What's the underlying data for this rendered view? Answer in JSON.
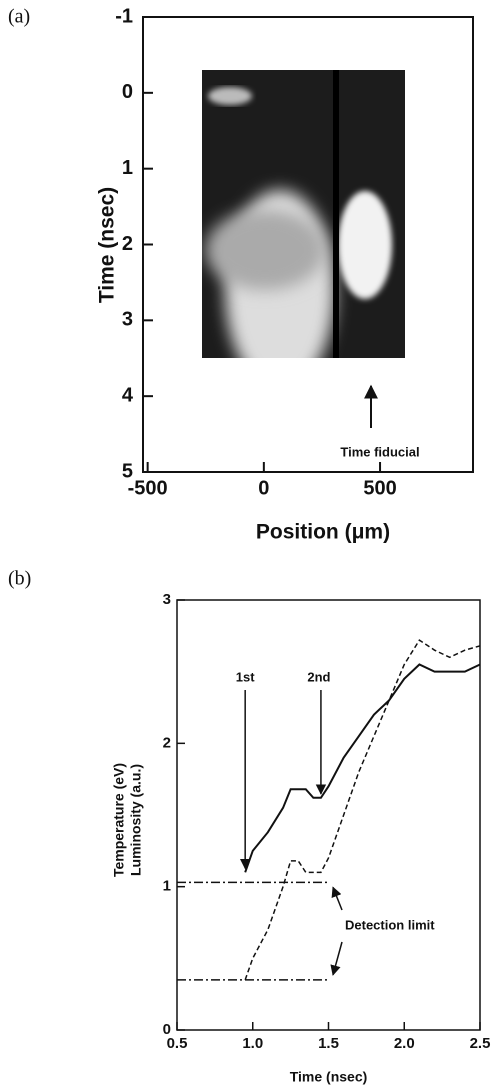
{
  "chart_data": [
    {
      "type": "image",
      "label": "(a)",
      "xlabel": "Position (μm)",
      "ylabel": "Time (nsec)",
      "xlim": [
        -520,
        900
      ],
      "xticks": [
        -500,
        0,
        500
      ],
      "ylim": [
        5,
        -1
      ],
      "yticks": [
        -1,
        0,
        1,
        2,
        3,
        4,
        5
      ],
      "annotations": [
        "Time fiducial"
      ]
    },
    {
      "type": "line",
      "label": "(b)",
      "xlabel": "Time (nsec)",
      "ylabel": [
        "Temperature (eV)",
        "Luminosity (a.u.)"
      ],
      "xlim": [
        0.5,
        2.5
      ],
      "xticks": [
        0.5,
        {
          "value": 1,
          "label": "1.0"
        },
        1.5,
        {
          "value": 2,
          "label": "2.0"
        },
        2.5
      ],
      "ylim": [
        0,
        3
      ],
      "yticks": [
        0,
        1,
        2,
        3
      ],
      "series": [
        {
          "style": "solid",
          "color": "#111111",
          "x": [
            0.95,
            1.0,
            1.1,
            1.2,
            1.25,
            1.35,
            1.4,
            1.45,
            1.5,
            1.6,
            1.7,
            1.8,
            1.9,
            2.0,
            2.1,
            2.2,
            2.3,
            2.4,
            2.5
          ],
          "values": [
            1.1,
            1.25,
            1.38,
            1.55,
            1.68,
            1.68,
            1.62,
            1.62,
            1.7,
            1.9,
            2.05,
            2.2,
            2.3,
            2.45,
            2.55,
            2.5,
            2.5,
            2.5,
            2.55
          ]
        },
        {
          "style": "dashed",
          "color": "#111111",
          "x": [
            0.95,
            1.0,
            1.1,
            1.2,
            1.25,
            1.3,
            1.35,
            1.45,
            1.5,
            1.6,
            1.7,
            1.8,
            1.9,
            2.0,
            2.1,
            2.2,
            2.3,
            2.4,
            2.5
          ],
          "values": [
            0.35,
            0.5,
            0.7,
            1.0,
            1.18,
            1.18,
            1.1,
            1.1,
            1.2,
            1.5,
            1.8,
            2.05,
            2.3,
            2.55,
            2.72,
            2.65,
            2.6,
            2.65,
            2.68
          ]
        },
        {
          "style": "dashdot",
          "color": "#111111",
          "x": [
            0.5,
            1.5
          ],
          "values": [
            1.03,
            1.03
          ]
        },
        {
          "style": "dashdot",
          "color": "#111111",
          "x": [
            0.5,
            1.5
          ],
          "values": [
            0.35,
            0.35
          ]
        }
      ],
      "annotations": [
        "1st",
        "2nd",
        "Detection limit"
      ]
    }
  ]
}
